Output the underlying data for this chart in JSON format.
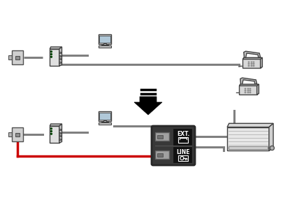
{
  "bg_color": "#ffffff",
  "line_color": "#808080",
  "red_color": "#cc0000",
  "black_color": "#000000",
  "dark_gray": "#404040",
  "light_gray": "#c0c0c0",
  "connector_gray": "#a0a0a0",
  "fig_width": 4.25,
  "fig_height": 3.0,
  "dpi": 100
}
